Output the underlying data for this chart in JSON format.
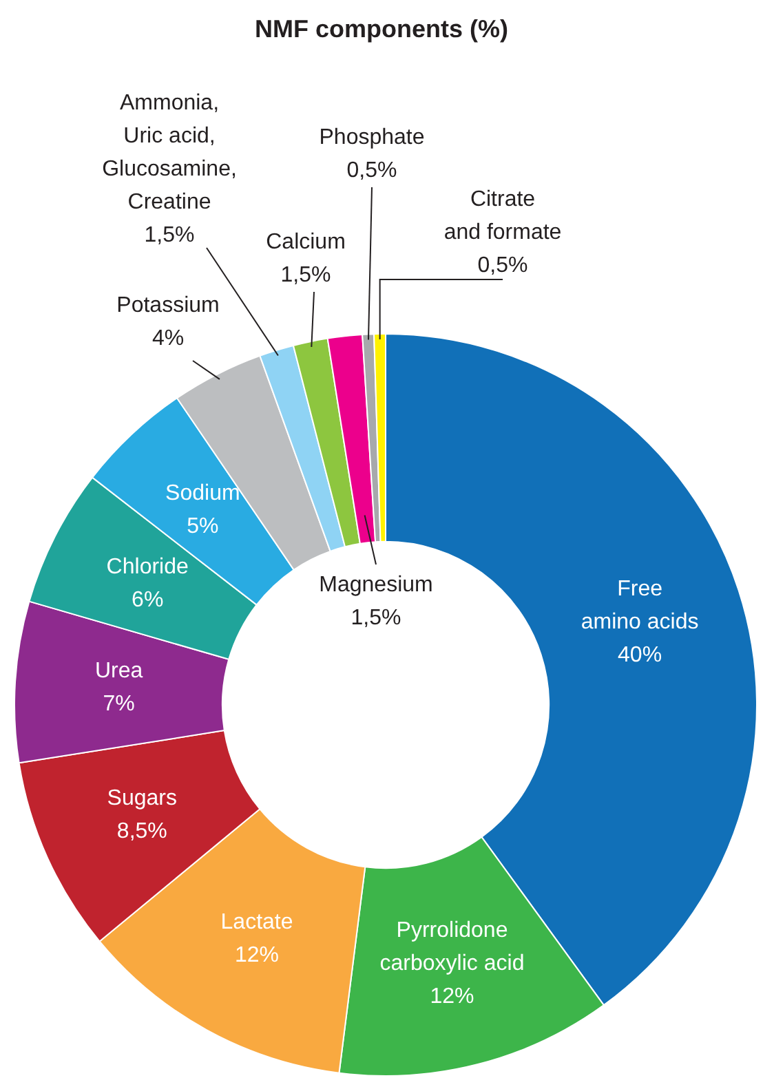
{
  "chart_data": {
    "type": "donut",
    "title": "NMF components (%)",
    "categories": [
      "Free\namino acids",
      "Pyrrolidone\ncarboxylic acid",
      "Lactate",
      "Sugars",
      "Urea",
      "Chloride",
      "Sodium",
      "Potassium",
      "Ammonia,\nUric acid,\nGlucosamine,\nCreatine",
      "Calcium",
      "Magnesium",
      "Phosphate",
      "Citrate\nand formate"
    ],
    "values": [
      40,
      12,
      12,
      8.5,
      7,
      6,
      5,
      4,
      1.5,
      1.5,
      1.5,
      0.5,
      0.5
    ],
    "value_labels": [
      "40%",
      "12%",
      "12%",
      "8,5%",
      "7%",
      "6%",
      "5%",
      "4%",
      "1,5%",
      "1,5%",
      "1,5%",
      "0,5%",
      "0,5%"
    ],
    "colors": [
      "#1170b8",
      "#3db54a",
      "#f9a940",
      "#c0232e",
      "#8e2a8e",
      "#20a49a",
      "#29abe2",
      "#bcbec0",
      "#8fd3f4",
      "#8dc63f",
      "#ec008c",
      "#a7a9ac",
      "#fff200"
    ],
    "legend": false
  }
}
